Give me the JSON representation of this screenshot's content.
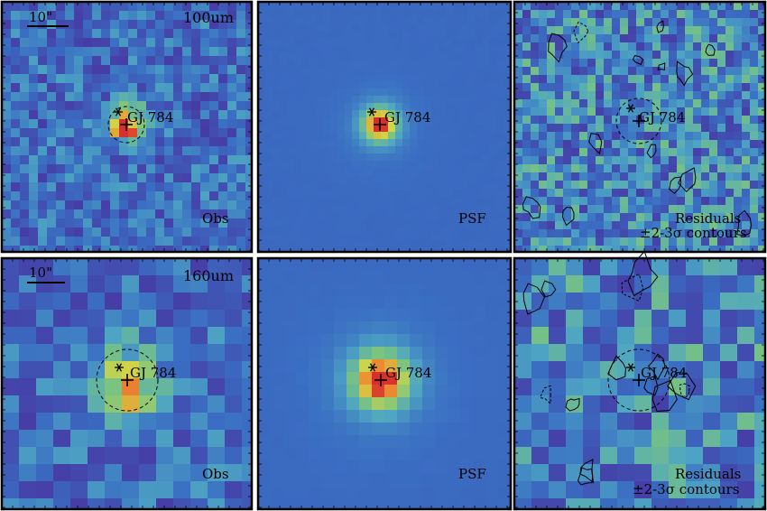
{
  "target": "GJ 784",
  "scale_bar_label": "10\"",
  "rows": [
    {
      "band": "100um",
      "panels": [
        {
          "label": "Obs",
          "sublabel": ""
        },
        {
          "label": "PSF",
          "sublabel": ""
        },
        {
          "label": "Residuals",
          "sublabel": "±2-3σ contours"
        }
      ]
    },
    {
      "band": "160um",
      "panels": [
        {
          "label": "Obs",
          "sublabel": ""
        },
        {
          "label": "PSF",
          "sublabel": ""
        },
        {
          "label": "Residuals",
          "sublabel": "±2-3σ contours"
        }
      ]
    }
  ],
  "colors": {
    "background_blue": "#3a6dbb",
    "psf_blue": "#4a7ec3",
    "core_red": "#d9453a",
    "frame": "#000000"
  }
}
